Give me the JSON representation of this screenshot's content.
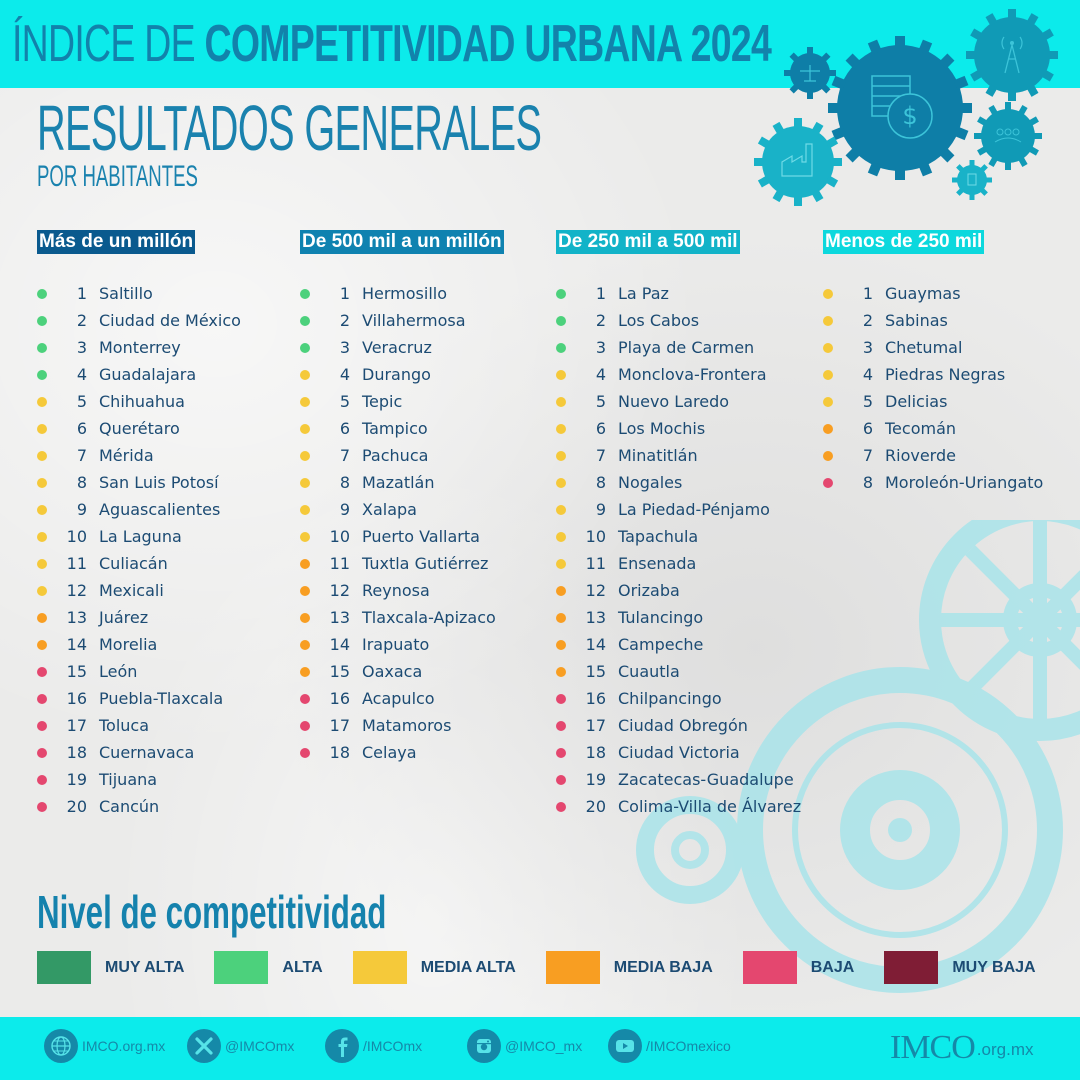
{
  "header": {
    "title_thin": "ÍNDICE DE ",
    "title_bold": "COMPETITIVIDAD URBANA 2024",
    "subtitle": "RESULTADOS GENERALES",
    "subsubtitle": "POR HABITANTES"
  },
  "colors": {
    "muy_alta": "#339966",
    "alta": "#4cd17c",
    "media_alta": "#f5c93a",
    "media_baja": "#f89e22",
    "baja": "#e4476f",
    "muy_baja": "#7f1d35",
    "header_1": "#0a5a8e",
    "header_2": "#0f82b0",
    "header_3": "#12b3c8",
    "header_4": "#0cd8dd",
    "accent": "#0cebeb",
    "text": "#1c4b73"
  },
  "columns": [
    {
      "header": "Más de un millón",
      "items": [
        {
          "rank": "1",
          "city": "Saltillo",
          "level": "alta"
        },
        {
          "rank": "2",
          "city": "Ciudad de México",
          "level": "alta"
        },
        {
          "rank": "3",
          "city": "Monterrey",
          "level": "alta"
        },
        {
          "rank": "4",
          "city": "Guadalajara",
          "level": "alta"
        },
        {
          "rank": "5",
          "city": "Chihuahua",
          "level": "media_alta"
        },
        {
          "rank": "6",
          "city": "Querétaro",
          "level": "media_alta"
        },
        {
          "rank": "7",
          "city": "Mérida",
          "level": "media_alta"
        },
        {
          "rank": "8",
          "city": "San Luis Potosí",
          "level": "media_alta"
        },
        {
          "rank": "9",
          "city": "Aguascalientes",
          "level": "media_alta"
        },
        {
          "rank": "10",
          "city": "La Laguna",
          "level": "media_alta"
        },
        {
          "rank": "11",
          "city": "Culiacán",
          "level": "media_alta"
        },
        {
          "rank": "12",
          "city": "Mexicali",
          "level": "media_alta"
        },
        {
          "rank": "13",
          "city": "Juárez",
          "level": "media_baja"
        },
        {
          "rank": "14",
          "city": "Morelia",
          "level": "media_baja"
        },
        {
          "rank": "15",
          "city": "León",
          "level": "baja"
        },
        {
          "rank": "16",
          "city": "Puebla-Tlaxcala",
          "level": "baja"
        },
        {
          "rank": "17",
          "city": "Toluca",
          "level": "baja"
        },
        {
          "rank": "18",
          "city": "Cuernavaca",
          "level": "baja"
        },
        {
          "rank": "19",
          "city": "Tijuana",
          "level": "baja"
        },
        {
          "rank": "20",
          "city": "Cancún",
          "level": "baja"
        }
      ]
    },
    {
      "header": "De 500 mil a un millón",
      "items": [
        {
          "rank": "1",
          "city": "Hermosillo",
          "level": "alta"
        },
        {
          "rank": "2",
          "city": "Villahermosa",
          "level": "alta"
        },
        {
          "rank": "3",
          "city": "Veracruz",
          "level": "alta"
        },
        {
          "rank": "4",
          "city": "Durango",
          "level": "media_alta"
        },
        {
          "rank": "5",
          "city": "Tepic",
          "level": "media_alta"
        },
        {
          "rank": "6",
          "city": "Tampico",
          "level": "media_alta"
        },
        {
          "rank": "7",
          "city": "Pachuca",
          "level": "media_alta"
        },
        {
          "rank": "8",
          "city": "Mazatlán",
          "level": "media_alta"
        },
        {
          "rank": "9",
          "city": "Xalapa",
          "level": "media_alta"
        },
        {
          "rank": "10",
          "city": "Puerto Vallarta",
          "level": "media_alta"
        },
        {
          "rank": "11",
          "city": "Tuxtla Gutiérrez",
          "level": "media_baja"
        },
        {
          "rank": "12",
          "city": "Reynosa",
          "level": "media_baja"
        },
        {
          "rank": "13",
          "city": "Tlaxcala-Apizaco",
          "level": "media_baja"
        },
        {
          "rank": "14",
          "city": "Irapuato",
          "level": "media_baja"
        },
        {
          "rank": "15",
          "city": "Oaxaca",
          "level": "media_baja"
        },
        {
          "rank": "16",
          "city": "Acapulco",
          "level": "baja"
        },
        {
          "rank": "17",
          "city": "Matamoros",
          "level": "baja"
        },
        {
          "rank": "18",
          "city": "Celaya",
          "level": "baja"
        }
      ]
    },
    {
      "header": "De 250 mil a 500 mil",
      "items": [
        {
          "rank": "1",
          "city": "La Paz",
          "level": "alta"
        },
        {
          "rank": "2",
          "city": "Los Cabos",
          "level": "alta"
        },
        {
          "rank": "3",
          "city": "Playa de Carmen",
          "level": "alta"
        },
        {
          "rank": "4",
          "city": "Monclova-Frontera",
          "level": "media_alta"
        },
        {
          "rank": "5",
          "city": "Nuevo Laredo",
          "level": "media_alta"
        },
        {
          "rank": "6",
          "city": "Los Mochis",
          "level": "media_alta"
        },
        {
          "rank": "7",
          "city": "Minatitlán",
          "level": "media_alta"
        },
        {
          "rank": "8",
          "city": "Nogales",
          "level": "media_alta"
        },
        {
          "rank": "9",
          "city": "La Piedad-Pénjamo",
          "level": "media_alta"
        },
        {
          "rank": "10",
          "city": "Tapachula",
          "level": "media_alta"
        },
        {
          "rank": "11",
          "city": "Ensenada",
          "level": "media_alta"
        },
        {
          "rank": "12",
          "city": "Orizaba",
          "level": "media_baja"
        },
        {
          "rank": "13",
          "city": "Tulancingo",
          "level": "media_baja"
        },
        {
          "rank": "14",
          "city": "Campeche",
          "level": "media_baja"
        },
        {
          "rank": "15",
          "city": "Cuautla",
          "level": "media_baja"
        },
        {
          "rank": "16",
          "city": "Chilpancingo",
          "level": "baja"
        },
        {
          "rank": "17",
          "city": "Ciudad Obregón",
          "level": "baja"
        },
        {
          "rank": "18",
          "city": "Ciudad Victoria",
          "level": "baja"
        },
        {
          "rank": "19",
          "city": "Zacatecas-Guadalupe",
          "level": "baja"
        },
        {
          "rank": "20",
          "city": "Colima-Villa de Álvarez",
          "level": "baja"
        }
      ]
    },
    {
      "header": "Menos de 250 mil",
      "items": [
        {
          "rank": "1",
          "city": "Guaymas",
          "level": "media_alta"
        },
        {
          "rank": "2",
          "city": "Sabinas",
          "level": "media_alta"
        },
        {
          "rank": "3",
          "city": "Chetumal",
          "level": "media_alta"
        },
        {
          "rank": "4",
          "city": "Piedras Negras",
          "level": "media_alta"
        },
        {
          "rank": "5",
          "city": "Delicias",
          "level": "media_alta"
        },
        {
          "rank": "6",
          "city": "Tecomán",
          "level": "media_baja"
        },
        {
          "rank": "7",
          "city": "Rioverde",
          "level": "media_baja"
        },
        {
          "rank": "8",
          "city": "Moroleón-Uriangato",
          "level": "baja"
        }
      ]
    }
  ],
  "legend": {
    "title": "Nivel de competitividad",
    "items": [
      {
        "label": "MUY ALTA",
        "level": "muy_alta"
      },
      {
        "label": "ALTA",
        "level": "alta"
      },
      {
        "label": "MEDIA ALTA",
        "level": "media_alta"
      },
      {
        "label": "MEDIA BAJA",
        "level": "media_baja"
      },
      {
        "label": "BAJA",
        "level": "baja"
      },
      {
        "label": "MUY BAJA",
        "level": "muy_baja"
      }
    ]
  },
  "footer": {
    "social": [
      {
        "icon": "globe-icon",
        "label": "IMCO.org.mx"
      },
      {
        "icon": "x-icon",
        "label": "@IMCOmx"
      },
      {
        "icon": "facebook-icon",
        "label": "/IMCOmx"
      },
      {
        "icon": "instagram-icon",
        "label": "@IMCO_mx"
      },
      {
        "icon": "youtube-icon",
        "label": "/IMCOmexico"
      }
    ],
    "logo_text": "IMCO",
    "logo_domain": ".org.mx"
  }
}
